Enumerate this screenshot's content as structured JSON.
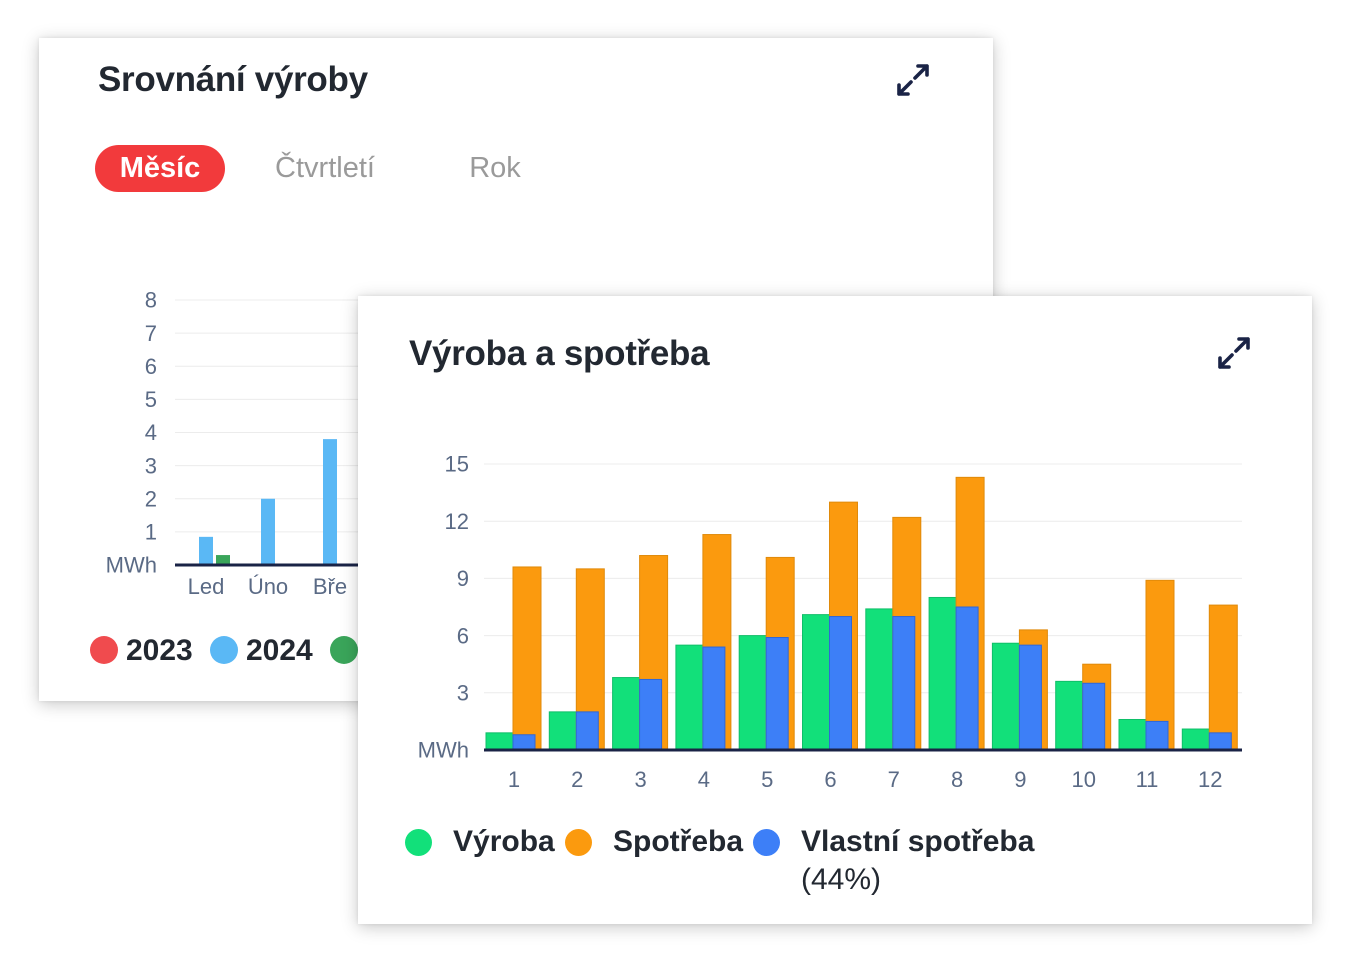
{
  "colors": {
    "title": "#222831",
    "tab_active_bg": "#f23a3c",
    "tab_inactive": "#9a9a9a",
    "axis_text": "#5a6a85",
    "axis_line": "#1a2346",
    "grid": "#ececec",
    "icon": "#1a2346"
  },
  "card1": {
    "title": "Srovnání výroby",
    "expand_icon": "expand-arrows-icon",
    "tabs": [
      {
        "label": "Měsíc",
        "active": true
      },
      {
        "label": "Čtvrtletí",
        "active": false
      },
      {
        "label": "Rok",
        "active": false
      }
    ],
    "chart_data": {
      "type": "bar",
      "unit_label": "MWh",
      "yticks": [
        1,
        2,
        3,
        4,
        5,
        6,
        7,
        8
      ],
      "ylim": [
        0,
        8
      ],
      "categories": [
        "Led",
        "Úno",
        "Bře"
      ],
      "series": [
        {
          "name": "2023",
          "color": "#f04b4e",
          "values": [
            null,
            null,
            null
          ]
        },
        {
          "name": "2024",
          "color": "#5ab8f5",
          "values": [
            0.85,
            2.0,
            3.8
          ]
        },
        {
          "name": "",
          "color": "#3aa55a",
          "values": [
            0.3,
            null,
            null
          ]
        }
      ],
      "grid": true,
      "legend_position": "bottom-left"
    }
  },
  "card2": {
    "title": "Výroba a spotřeba",
    "expand_icon": "expand-arrows-icon",
    "chart_data": {
      "type": "bar",
      "unit_label": "MWh",
      "yticks": [
        3,
        6,
        9,
        12,
        15
      ],
      "ylim": [
        0,
        15
      ],
      "categories": [
        "1",
        "2",
        "3",
        "4",
        "5",
        "6",
        "7",
        "8",
        "9",
        "10",
        "11",
        "12"
      ],
      "series": [
        {
          "name": "Výroba",
          "color": "#12e07a",
          "values": [
            0.9,
            2.0,
            3.8,
            5.5,
            6.0,
            7.1,
            7.4,
            8.0,
            5.6,
            3.6,
            1.6,
            1.1
          ]
        },
        {
          "name": "Spotřeba",
          "color": "#fb9a0e",
          "values": [
            9.6,
            9.5,
            10.2,
            11.3,
            10.1,
            13.0,
            12.2,
            14.3,
            6.3,
            4.5,
            8.9,
            7.6
          ]
        },
        {
          "name": "Vlastní spotřeba",
          "note": "(44%)",
          "color": "#3d7ff7",
          "values": [
            0.8,
            2.0,
            3.7,
            5.4,
            5.9,
            7.0,
            7.0,
            7.5,
            5.5,
            3.5,
            1.5,
            0.9
          ]
        }
      ],
      "grid": true,
      "legend_position": "bottom-left"
    }
  }
}
